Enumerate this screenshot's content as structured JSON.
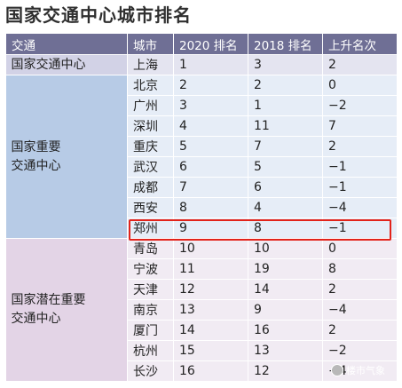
{
  "title": "国家交通中心城市排名",
  "headers": [
    "交通",
    "城市",
    "2020 排名",
    "2018 排名",
    "上升名次"
  ],
  "groups": [
    {
      "label": "国家交通中心",
      "color": "#d2d2e6"
    },
    {
      "label": "国家重要\n交通中心",
      "color": "#b7cbe6"
    },
    {
      "label": "国家潜在重要\n交通中心",
      "color": "#e3d4e6"
    }
  ],
  "rows": [
    {
      "city": "上海",
      "r2020": "1",
      "r2018": "3",
      "change": "2"
    },
    {
      "city": "北京",
      "r2020": "2",
      "r2018": "2",
      "change": "0"
    },
    {
      "city": "广州",
      "r2020": "3",
      "r2018": "1",
      "change": "−2"
    },
    {
      "city": "深圳",
      "r2020": "4",
      "r2018": "11",
      "change": "7"
    },
    {
      "city": "重庆",
      "r2020": "5",
      "r2018": "7",
      "change": "2"
    },
    {
      "city": "武汉",
      "r2020": "6",
      "r2018": "5",
      "change": "−1"
    },
    {
      "city": "成都",
      "r2020": "7",
      "r2018": "6",
      "change": "−1"
    },
    {
      "city": "西安",
      "r2020": "8",
      "r2018": "4",
      "change": "−4"
    },
    {
      "city": "郑州",
      "r2020": "9",
      "r2018": "8",
      "change": "−1"
    },
    {
      "city": "青岛",
      "r2020": "10",
      "r2018": "10",
      "change": "0"
    },
    {
      "city": "宁波",
      "r2020": "11",
      "r2018": "19",
      "change": "8"
    },
    {
      "city": "天津",
      "r2020": "12",
      "r2018": "14",
      "change": "2"
    },
    {
      "city": "南京",
      "r2020": "13",
      "r2018": "9",
      "change": "−4"
    },
    {
      "city": "厦门",
      "r2020": "14",
      "r2018": "16",
      "change": "2"
    },
    {
      "city": "杭州",
      "r2020": "15",
      "r2018": "13",
      "change": "−2"
    },
    {
      "city": "长沙",
      "r2020": "16",
      "r2018": "12",
      "change": "−4"
    }
  ],
  "watermark": "楼市气象"
}
